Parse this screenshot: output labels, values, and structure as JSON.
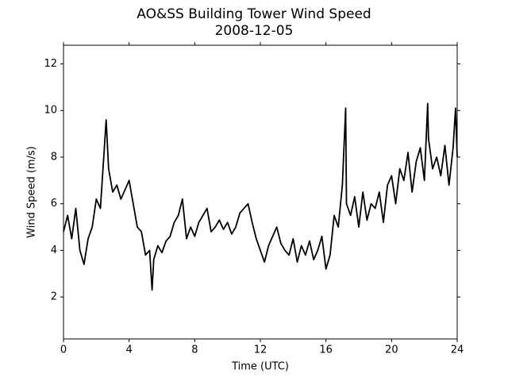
{
  "chart_data": {
    "type": "line",
    "title": "AO&SS Building Tower Wind Speed",
    "subtitle": "2008-12-05",
    "x_label": "Time (UTC)",
    "y_label": "Wind Speed (m/s)",
    "color": "#000000",
    "x": [
      0,
      0.25,
      0.5,
      0.75,
      1,
      1.25,
      1.5,
      1.75,
      2,
      2.25,
      2.5,
      2.6,
      2.75,
      3,
      3.25,
      3.5,
      3.75,
      4,
      4.25,
      4.5,
      4.75,
      5,
      5.25,
      5.4,
      5.5,
      5.75,
      6,
      6.25,
      6.5,
      6.75,
      7,
      7.25,
      7.5,
      7.75,
      8,
      8.25,
      8.5,
      8.75,
      9,
      9.25,
      9.5,
      9.75,
      10,
      10.25,
      10.5,
      10.75,
      11,
      11.25,
      11.5,
      11.75,
      12,
      12.25,
      12.5,
      12.75,
      13,
      13.25,
      13.5,
      13.75,
      14,
      14.25,
      14.5,
      14.75,
      15,
      15.25,
      15.5,
      15.75,
      16,
      16.25,
      16.5,
      16.75,
      17,
      17.2,
      17.25,
      17.5,
      17.75,
      18,
      18.25,
      18.5,
      18.75,
      19,
      19.25,
      19.5,
      19.75,
      20,
      20.25,
      20.5,
      20.75,
      21,
      21.25,
      21.5,
      21.75,
      22,
      22.2,
      22.25,
      22.5,
      22.75,
      23,
      23.25,
      23.5,
      23.75,
      23.9,
      24
    ],
    "values": [
      4.8,
      5.5,
      4.5,
      5.8,
      4.0,
      3.4,
      4.5,
      5.0,
      6.2,
      5.8,
      8.5,
      9.6,
      7.5,
      6.5,
      6.8,
      6.2,
      6.6,
      7.0,
      6.0,
      5.0,
      4.8,
      3.8,
      4.0,
      2.3,
      3.6,
      4.2,
      3.9,
      4.4,
      4.6,
      5.2,
      5.5,
      6.2,
      4.5,
      5.0,
      4.6,
      5.2,
      5.5,
      5.8,
      4.8,
      5.0,
      5.3,
      4.9,
      5.2,
      4.7,
      5.0,
      5.6,
      5.8,
      6.0,
      5.2,
      4.5,
      4.0,
      3.5,
      4.2,
      4.6,
      5.0,
      4.3,
      4.0,
      3.8,
      4.5,
      3.5,
      4.2,
      3.8,
      4.4,
      3.6,
      4.0,
      4.6,
      3.2,
      3.8,
      5.5,
      5.0,
      6.8,
      10.1,
      6.0,
      5.5,
      6.3,
      5.0,
      6.5,
      5.3,
      6.0,
      5.8,
      6.5,
      5.2,
      6.8,
      7.2,
      6.0,
      7.5,
      7.0,
      8.2,
      6.5,
      7.8,
      8.4,
      7.0,
      10.3,
      8.8,
      7.5,
      8.0,
      7.2,
      8.5,
      6.8,
      8.4,
      10.1,
      8.0
    ],
    "xlim": [
      0,
      24
    ],
    "xticks": [
      0,
      4,
      8,
      12,
      16,
      20,
      24
    ],
    "ylim": [
      0.2,
      12.8
    ],
    "yticks": [
      2,
      4,
      6,
      8,
      10,
      12
    ]
  }
}
